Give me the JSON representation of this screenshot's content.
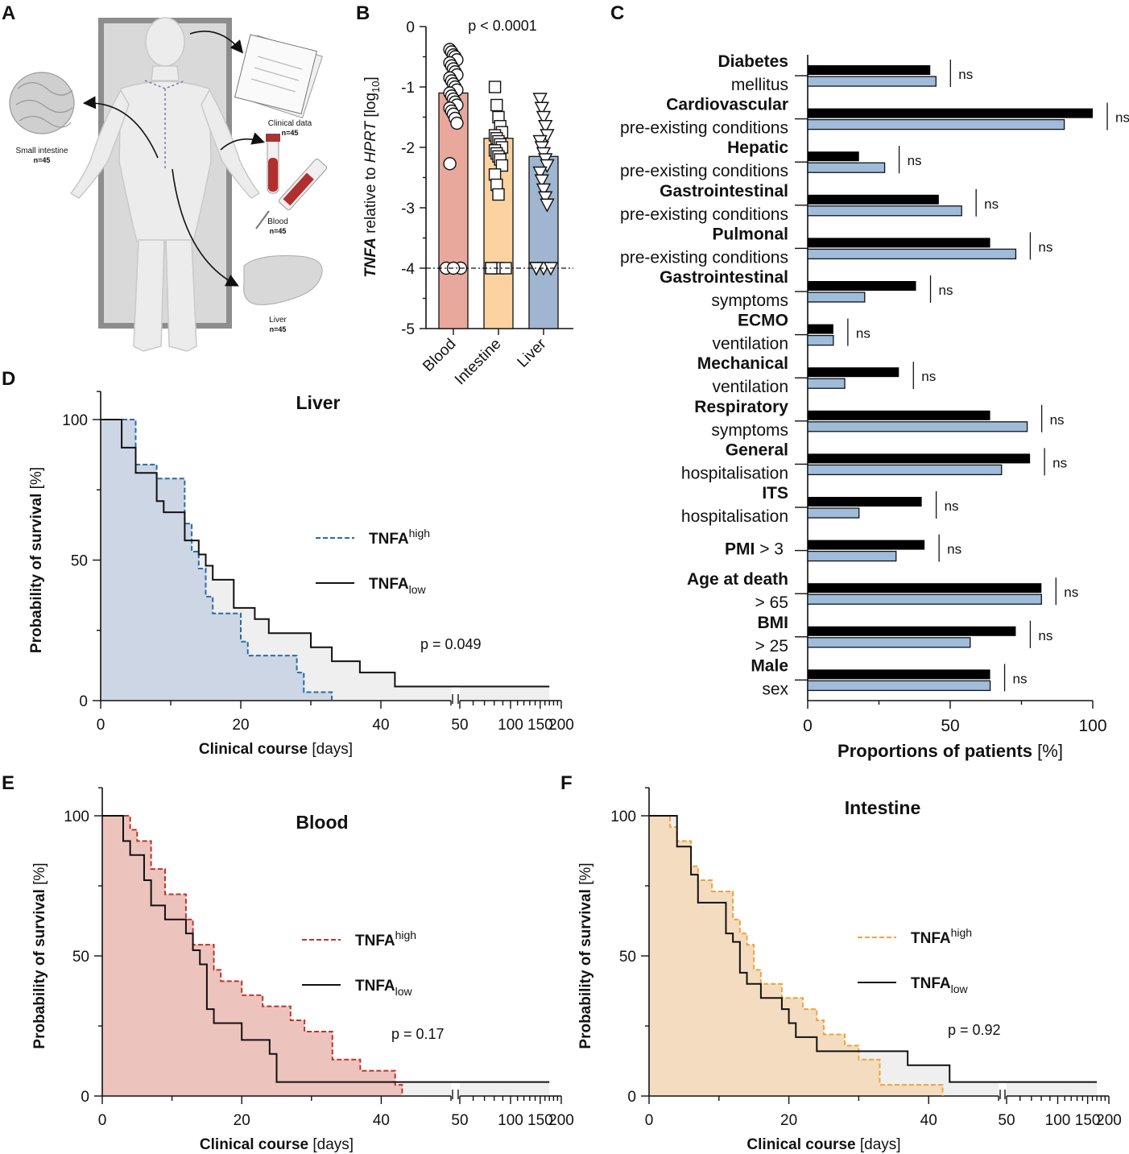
{
  "panels": {
    "A": {
      "label": "A",
      "captions": [
        {
          "text": "Clinical data",
          "count": "n=45"
        },
        {
          "text": "Small intestine",
          "count": "n=45"
        },
        {
          "text": "Blood",
          "count": "n=45"
        },
        {
          "text": "Liver",
          "count": "n=45"
        }
      ]
    },
    "B": {
      "label": "B"
    },
    "C": {
      "label": "C"
    },
    "D": {
      "label": "D"
    },
    "E": {
      "label": "E"
    },
    "F": {
      "label": "F"
    }
  },
  "colors": {
    "blood": "#e8a89b",
    "intestine": "#fbd2a0",
    "liver": "#9fb5d0",
    "black_bar": "#000000",
    "blue_bar": "#9fbcda",
    "liver_fill": "#cdd6e4",
    "blood_fill": "#edc3bd",
    "intestine_fill": "#f4dcc0",
    "low_fill": "#efefef",
    "liver_dash": "#2b6aa8",
    "blood_dash": "#c0332a",
    "intestine_dash": "#f0a23a"
  },
  "chart_data": [
    {
      "id": "B",
      "type": "bar",
      "title": "p < 0.0001",
      "ylabel": "TNFA relative to HPRT [log10]",
      "ylabel_parts": {
        "gene": "TNFA",
        "mid": " relative to ",
        "ref": "HPRT",
        "unit_pre": " [log",
        "unit_sub": "10",
        "unit_post": "]"
      },
      "ylim": [
        -5,
        0
      ],
      "yticks": [
        0,
        -1,
        -2,
        -3,
        -4,
        -5
      ],
      "yticklabels": [
        "0",
        "-1",
        "-2",
        "-3",
        "-4",
        "-5"
      ],
      "dashed_line_y": -4,
      "categories": [
        "Blood",
        "Intestine",
        "Liver"
      ],
      "values": [
        -1.1,
        -1.85,
        -2.15
      ],
      "markers": [
        "circle",
        "square",
        "triangle-down"
      ],
      "points": [
        [
          -0.38,
          -0.42,
          -0.47,
          -0.5,
          -0.55,
          -0.6,
          -0.65,
          -0.7,
          -0.75,
          -0.8,
          -0.85,
          -0.9,
          -0.95,
          -1.0,
          -1.05,
          -1.1,
          -1.15,
          -1.2,
          -1.25,
          -1.3,
          -1.35,
          -1.4,
          -1.45,
          -1.52,
          -1.6,
          -2.27,
          -4.0,
          -4.0,
          -4.0
        ],
        [
          -1.0,
          -1.3,
          -1.5,
          -1.65,
          -1.75,
          -1.8,
          -1.85,
          -1.9,
          -1.95,
          -2.0,
          -2.05,
          -2.1,
          -2.15,
          -2.2,
          -2.3,
          -2.45,
          -2.62,
          -2.78,
          -4.0,
          -4.0,
          -4.0,
          -4.0
        ],
        [
          -1.2,
          -1.35,
          -1.5,
          -1.65,
          -1.8,
          -1.9,
          -2.0,
          -2.1,
          -2.2,
          -2.3,
          -2.42,
          -2.55,
          -2.7,
          -2.83,
          -2.95,
          -4.0,
          -4.0,
          -4.0,
          -4.0
        ]
      ]
    },
    {
      "id": "C",
      "type": "bar",
      "orientation": "horizontal",
      "xlabel": "Proportions of patients [%]",
      "xlabel_parts": {
        "bold": "Proportions of patients",
        "rest": " [%]"
      },
      "xlim": [
        0,
        100
      ],
      "xticks": [
        "0",
        "50",
        "100"
      ],
      "categories": [
        {
          "bold": "Diabetes",
          "line2": "mellitus"
        },
        {
          "bold": "Cardiovascular",
          "line2": "pre-existing conditions"
        },
        {
          "bold": "Hepatic",
          "line2": "pre-existing conditions"
        },
        {
          "bold": "Gastrointestinal",
          "line2": "pre-existing conditions"
        },
        {
          "bold": "Pulmonal",
          "line2": "pre-existing conditions"
        },
        {
          "bold": "Gastrointestinal",
          "line2": "symptoms"
        },
        {
          "bold": "ECMO",
          "line2": "ventilation"
        },
        {
          "bold": "Mechanical",
          "line2": "ventilation"
        },
        {
          "bold": "Respiratory",
          "line2": "symptoms"
        },
        {
          "bold": "General",
          "line2": "hospitalisation"
        },
        {
          "bold": "ITS",
          "line2": "hospitalisation"
        },
        {
          "bold": "PMI",
          "inline": " > 3"
        },
        {
          "bold": "Age at death",
          "line2": "> 65"
        },
        {
          "bold": "BMI",
          "line2": "> 25"
        },
        {
          "bold": "Male",
          "line2": "sex"
        }
      ],
      "series": [
        {
          "name": "black",
          "values": [
            43,
            100,
            18,
            46,
            64,
            38,
            9,
            32,
            64,
            78,
            40,
            41,
            82,
            73,
            64
          ]
        },
        {
          "name": "light blue",
          "values": [
            45,
            90,
            27,
            54,
            73,
            20,
            9,
            13,
            77,
            68,
            18,
            31,
            82,
            57,
            64
          ]
        }
      ],
      "significance": [
        "ns",
        "ns",
        "ns",
        "ns",
        "ns",
        "ns",
        "ns",
        "ns",
        "ns",
        "ns",
        "ns",
        "ns",
        "ns",
        "ns",
        "ns"
      ]
    },
    {
      "id": "D",
      "type": "line",
      "subtype": "kaplan-meier",
      "title": "Liver",
      "xlabel_parts": {
        "bold": "Clinical course",
        "rest": " [days]"
      },
      "ylabel_parts": {
        "bold": "Probability of survival",
        "rest": " [%]"
      },
      "xlim_main": [
        0,
        50
      ],
      "x_break": [
        50,
        200
      ],
      "xticks_main": [
        "0",
        "20",
        "40"
      ],
      "xticks_log": [
        "50",
        "100",
        "150",
        "200"
      ],
      "ylim": [
        0,
        100
      ],
      "yticks": [
        "0",
        "50",
        "100"
      ],
      "pvalue": "p = 0.049",
      "series": [
        {
          "name": "TNFA",
          "suffix": "high",
          "suffix_pos": "sup",
          "style": "dashed",
          "x": [
            0,
            4,
            5,
            7,
            8,
            12,
            13,
            14,
            15,
            16,
            20,
            21,
            28,
            29,
            33,
            33
          ],
          "y": [
            100,
            100,
            84,
            84,
            79,
            63,
            53,
            47,
            37,
            31,
            21,
            16,
            10,
            3,
            0,
            0
          ]
        },
        {
          "name": "TNFA",
          "suffix": "low",
          "suffix_pos": "sub",
          "style": "solid",
          "x": [
            0,
            2,
            3,
            5,
            8,
            9,
            12,
            14,
            15,
            16,
            19,
            22,
            24,
            25,
            30,
            33,
            37,
            42,
            43,
            50,
            170
          ],
          "y": [
            100,
            100,
            90,
            81,
            71,
            67,
            57,
            52,
            48,
            43,
            33,
            29,
            24,
            24,
            19,
            14,
            10,
            5,
            5,
            5,
            5
          ]
        }
      ]
    },
    {
      "id": "E",
      "type": "line",
      "subtype": "kaplan-meier",
      "title": "Blood",
      "xlabel_parts": {
        "bold": "Clinical course",
        "rest": " [days]"
      },
      "ylabel_parts": {
        "bold": "Probability of survival",
        "rest": " [%]"
      },
      "xlim_main": [
        0,
        50
      ],
      "x_break": [
        50,
        200
      ],
      "xticks_main": [
        "0",
        "20",
        "40"
      ],
      "xticks_log": [
        "50",
        "100",
        "150",
        "200"
      ],
      "ylim": [
        0,
        100
      ],
      "yticks": [
        "0",
        "50",
        "100"
      ],
      "pvalue": "p = 0.17",
      "series": [
        {
          "name": "TNFA",
          "suffix": "high",
          "suffix_pos": "sup",
          "style": "dashed",
          "x": [
            0,
            3,
            4,
            5,
            7,
            9,
            12,
            13,
            16,
            17,
            20,
            23,
            27,
            29,
            33,
            37,
            42,
            43,
            43
          ],
          "y": [
            100,
            100,
            95,
            91,
            81,
            72,
            63,
            54,
            45,
            41,
            36,
            32,
            27,
            23,
            13,
            9,
            4,
            0,
            0
          ]
        },
        {
          "name": "TNFA",
          "suffix": "low",
          "suffix_pos": "sub",
          "style": "solid",
          "x": [
            0,
            2,
            3,
            4,
            6,
            7,
            9,
            12,
            13,
            14,
            15,
            16,
            20,
            24,
            25,
            50,
            170
          ],
          "y": [
            100,
            100,
            91,
            86,
            77,
            68,
            63,
            58,
            52,
            47,
            31,
            26,
            20,
            15,
            5,
            5,
            5
          ]
        }
      ]
    },
    {
      "id": "F",
      "type": "line",
      "subtype": "kaplan-meier",
      "title": "Intestine",
      "xlabel_parts": {
        "bold": "Clinical course",
        "rest": " [days]"
      },
      "ylabel_parts": {
        "bold": "Probability of survival",
        "rest": " [%]"
      },
      "xlim_main": [
        0,
        50
      ],
      "x_break": [
        50,
        200
      ],
      "xticks_main": [
        "0",
        "20",
        "40"
      ],
      "xticks_log": [
        "50",
        "100",
        "150",
        "200"
      ],
      "ylim": [
        0,
        100
      ],
      "yticks": [
        "0",
        "50",
        "100"
      ],
      "pvalue": "p = 0.92",
      "series": [
        {
          "name": "TNFA",
          "suffix": "high",
          "suffix_pos": "sup",
          "style": "dashed",
          "x": [
            0,
            2,
            3,
            4,
            6,
            7,
            9,
            12,
            13,
            14,
            15,
            16,
            19,
            22,
            24,
            25,
            28,
            30,
            33,
            42,
            42
          ],
          "y": [
            100,
            100,
            96,
            91,
            82,
            77,
            73,
            63,
            58,
            54,
            45,
            40,
            35,
            31,
            27,
            22,
            18,
            13,
            4,
            0,
            0
          ]
        },
        {
          "name": "TNFA",
          "suffix": "low",
          "suffix_pos": "sub",
          "style": "solid",
          "x": [
            0,
            3,
            4,
            6,
            7,
            11,
            12,
            13,
            14,
            16,
            19,
            20,
            21,
            24,
            28,
            30,
            37,
            43,
            50,
            170
          ],
          "y": [
            100,
            100,
            89,
            79,
            69,
            58,
            55,
            44,
            40,
            35,
            31,
            26,
            21,
            16,
            16,
            16,
            11,
            5,
            5,
            5
          ]
        }
      ]
    }
  ]
}
